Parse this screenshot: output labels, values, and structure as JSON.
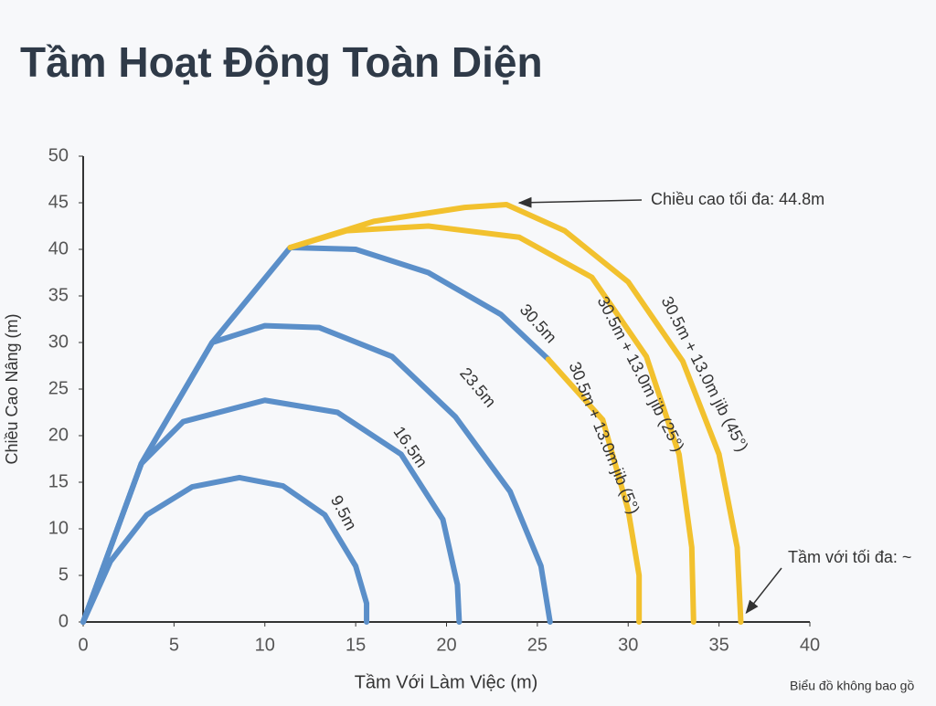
{
  "chart_data": {
    "type": "line",
    "title": "Tầm Hoạt Động Toàn Diện",
    "x_label": "Tầm Với Làm Việc (m)",
    "y_label": "Chiều Cao Nâng (m)",
    "xlim": [
      0,
      40
    ],
    "xticks": [
      0,
      5,
      10,
      15,
      20,
      25,
      30,
      35,
      40
    ],
    "ylim": [
      0,
      50
    ],
    "yticks": [
      0,
      5,
      10,
      15,
      20,
      25,
      30,
      35,
      40,
      45,
      50
    ],
    "grid": false,
    "series": [
      {
        "name": "9.5m",
        "color": "#5b8fc9",
        "x": [
          0,
          1.5,
          3.5,
          6,
          8.6,
          11,
          13.3,
          15,
          15.6,
          15.6
        ],
        "values": [
          0,
          6.5,
          11.5,
          14.5,
          15.5,
          14.6,
          11.5,
          6,
          2,
          0
        ]
      },
      {
        "name": "16.5m",
        "color": "#5b8fc9",
        "x": [
          0,
          3.2,
          5.5,
          10,
          14,
          17.5,
          19.8,
          20.6,
          20.7
        ],
        "values": [
          0,
          17,
          21.5,
          23.8,
          22.5,
          18,
          11,
          4,
          0
        ]
      },
      {
        "name": "23.5m",
        "color": "#5b8fc9",
        "x": [
          0,
          3.2,
          7.1,
          10,
          13,
          17,
          20.5,
          23.5,
          25.2,
          25.7
        ],
        "values": [
          0,
          17,
          30,
          31.8,
          31.6,
          28.5,
          22,
          14,
          6,
          0
        ]
      },
      {
        "name": "30.5m",
        "color": "#5b8fc9",
        "x": [
          0,
          3.2,
          7.1,
          11.4,
          15,
          19,
          23,
          25.6
        ],
        "values": [
          0,
          17,
          30,
          40.2,
          40,
          37.5,
          33,
          28.2
        ]
      },
      {
        "name": "30.5m + 13.0m jib (5°)",
        "color": "#f2c12e",
        "x": [
          25.6,
          28.6,
          30,
          30.6,
          30.6
        ],
        "values": [
          28.2,
          21.7,
          12,
          5,
          0
        ]
      },
      {
        "name": "30.5m + 13.0m jib (25°)",
        "color": "#f2c12e",
        "x": [
          11.4,
          14.5,
          19,
          24,
          28,
          31,
          32.8,
          33.5,
          33.6
        ],
        "values": [
          40.2,
          42,
          42.5,
          41.3,
          37,
          28.5,
          18,
          8,
          0
        ]
      },
      {
        "name": "30.5m + 13.0m jib (45°)",
        "color": "#f2c12e",
        "x": [
          11.4,
          16,
          21,
          23.3,
          26.5,
          30,
          33,
          35,
          36,
          36.2
        ],
        "values": [
          40.2,
          43,
          44.5,
          44.8,
          42,
          36.5,
          28,
          18,
          8,
          0
        ]
      }
    ],
    "annotations": [
      {
        "text": "Chiều cao tối đa: 44.8m",
        "x": 23.3,
        "y": 44.8
      },
      {
        "text": "Tầm với tối đa: ~",
        "x": 36.2,
        "y": 0
      }
    ],
    "footnote": "Biểu đồ không bao gồ"
  }
}
